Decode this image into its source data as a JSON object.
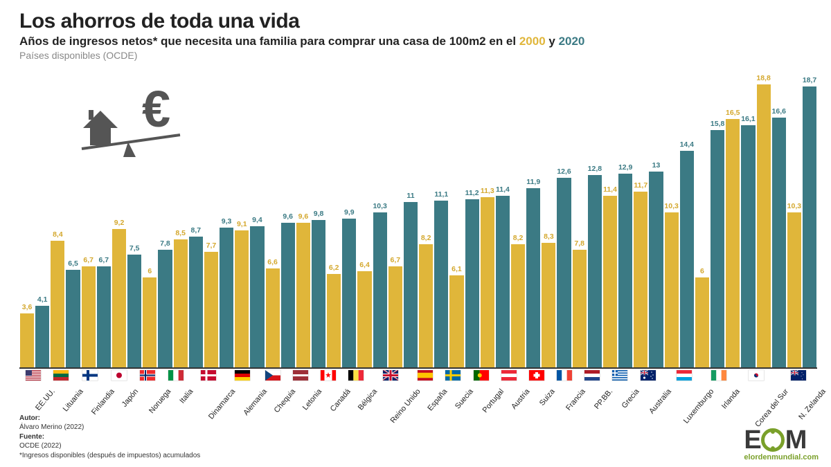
{
  "header": {
    "title": "Los ahorros de toda una vida",
    "subtitle_pre": "Años de ingresos netos* que necesita una familia para comprar una casa de 100m2 en el ",
    "year1": "2000",
    "subtitle_mid": " y ",
    "year2": "2020",
    "note": "Países disponibles (OCDE)"
  },
  "chart": {
    "type": "bar",
    "ymax": 19,
    "colors": {
      "y2000": "#e0b63a",
      "y2020": "#3b7a84"
    },
    "data": [
      {
        "country": "EE.UU.",
        "y2000": 3.6,
        "y2020": 4.1,
        "flag": "us"
      },
      {
        "country": "Lituania",
        "y2000": 8.4,
        "y2020": 6.5,
        "flag": "lt"
      },
      {
        "country": "Finlandia",
        "y2000": 6.7,
        "y2020": 6.7,
        "flag": "fi"
      },
      {
        "country": "Japón",
        "y2000": 9.2,
        "y2020": 7.5,
        "flag": "jp"
      },
      {
        "country": "Noruega",
        "y2000": 6,
        "y2020": 7.8,
        "flag": "no"
      },
      {
        "country": "Italia",
        "y2000": 8.5,
        "y2020": 8.7,
        "flag": "it"
      },
      {
        "country": "Dinamarca",
        "y2000": 7.7,
        "y2020": 9.3,
        "flag": "dk"
      },
      {
        "country": "Alemania",
        "y2000": 9.1,
        "y2020": 9.4,
        "flag": "de"
      },
      {
        "country": "Chequia",
        "y2000": 6.6,
        "y2020": 9.6,
        "flag": "cz"
      },
      {
        "country": "Letonia",
        "y2000": 9.6,
        "y2020": 9.8,
        "flag": "lv"
      },
      {
        "country": "Canadá",
        "y2000": 6.2,
        "y2020": 9.9,
        "flag": "ca"
      },
      {
        "country": "Bélgica",
        "y2000": 6.4,
        "y2020": 10.3,
        "flag": "be"
      },
      {
        "country": "Reino Unido",
        "y2000": 6.7,
        "y2020": 11,
        "flag": "gb"
      },
      {
        "country": "España",
        "y2000": 8.2,
        "y2020": 11.1,
        "flag": "es"
      },
      {
        "country": "Suecia",
        "y2000": 6.1,
        "y2020": 11.2,
        "flag": "se"
      },
      {
        "country": "Portugal",
        "y2000": 11.3,
        "y2020": 11.4,
        "flag": "pt"
      },
      {
        "country": "Austria",
        "y2000": 8.2,
        "y2020": 11.9,
        "flag": "at"
      },
      {
        "country": "Suiza",
        "y2000": 8.3,
        "y2020": 12.6,
        "flag": "ch"
      },
      {
        "country": "Francia",
        "y2000": 7.8,
        "y2020": 12.8,
        "flag": "fr"
      },
      {
        "country": "PP.BB.",
        "y2000": 11.4,
        "y2020": 12.9,
        "flag": "nl"
      },
      {
        "country": "Grecia",
        "y2000": 11.7,
        "y2020": 13,
        "flag": "gr"
      },
      {
        "country": "Australia",
        "y2000": 10.3,
        "y2020": 14.4,
        "flag": "au"
      },
      {
        "country": "Luxemburgo",
        "y2000": 6,
        "y2020": 15.8,
        "flag": "lu"
      },
      {
        "country": "Irlanda",
        "y2000": 16.5,
        "y2020": 16.1,
        "flag": "ie"
      },
      {
        "country": "Corea del Sur",
        "y2000": 18.8,
        "y2020": 16.6,
        "flag": "kr"
      },
      {
        "country": "N. Zelanda",
        "y2000": 10.3,
        "y2020": 18.7,
        "flag": "nz"
      }
    ]
  },
  "footer": {
    "author_label": "Autor:",
    "author": "Álvaro Merino (2022)",
    "source_label": "Fuente:",
    "source": "OCDE (2022)",
    "disclaimer": "*Ingresos disponibles (después de impuestos) acumulados"
  },
  "logo": {
    "text_e": "E",
    "text_m": "M",
    "sub": "elordenmundial.com"
  }
}
